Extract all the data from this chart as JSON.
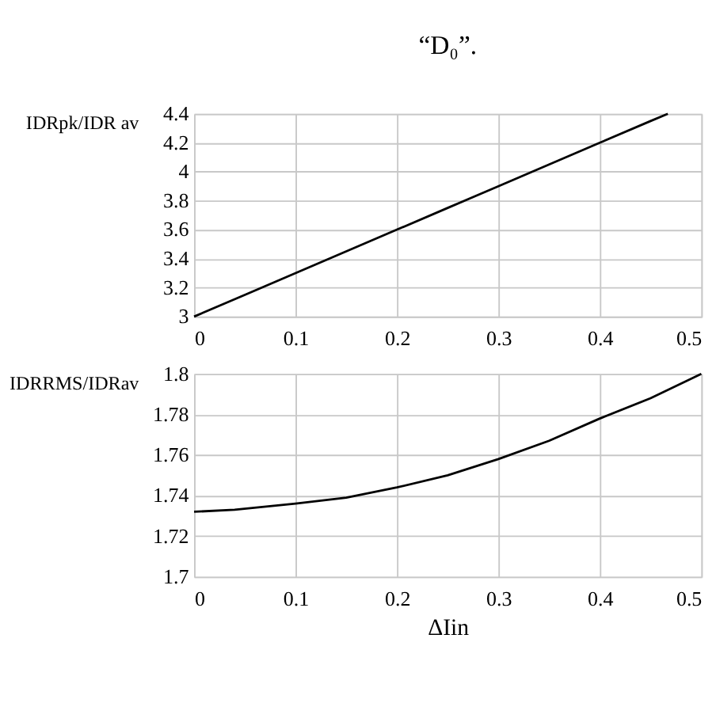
{
  "chart_data": [
    {
      "type": "line",
      "title": "“D₀”.",
      "ylabel": "IDRpk/IDR av",
      "x": [
        0,
        0.05,
        0.1,
        0.15,
        0.2,
        0.25,
        0.3,
        0.35,
        0.4,
        0.45,
        0.467
      ],
      "series": [
        {
          "color": "#000000",
          "values": [
            3,
            3.15,
            3.3,
            3.45,
            3.6,
            3.75,
            3.9,
            4.05,
            4.2,
            4.35,
            4.4
          ]
        }
      ],
      "xlim": [
        0,
        0.5
      ],
      "xticks": [
        0,
        0.1,
        0.2,
        0.3,
        0.4,
        0.5
      ],
      "ylim": [
        3,
        4.4
      ],
      "yticks": [
        3,
        3.2,
        3.4,
        3.6,
        3.8,
        4,
        4.2,
        4.4
      ],
      "grid": true
    },
    {
      "type": "line",
      "xlabel": "ΔIin",
      "ylabel": "IDRRMS/IDRav",
      "x": [
        0,
        0.04,
        0.1,
        0.15,
        0.2,
        0.25,
        0.3,
        0.35,
        0.4,
        0.45,
        0.5
      ],
      "series": [
        {
          "color": "#000000",
          "values": [
            1.732,
            1.733,
            1.736,
            1.739,
            1.744,
            1.75,
            1.758,
            1.767,
            1.778,
            1.788,
            1.8
          ]
        }
      ],
      "xlim": [
        0,
        0.5
      ],
      "xticks": [
        0,
        0.1,
        0.2,
        0.3,
        0.4,
        0.5
      ],
      "ylim": [
        1.7,
        1.8
      ],
      "yticks": [
        1.7,
        1.72,
        1.74,
        1.76,
        1.78,
        1.8
      ],
      "grid": true
    }
  ]
}
